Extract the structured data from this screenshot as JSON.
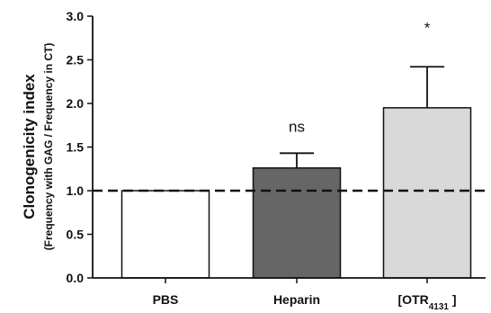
{
  "chart_data": {
    "type": "bar",
    "categories": [
      "PBS",
      "Heparin",
      "[OTR4131 ]"
    ],
    "category_labels": [
      {
        "text": "PBS",
        "subscript": ""
      },
      {
        "text": "Heparin",
        "subscript": ""
      },
      {
        "text": "[OTR",
        "subscript": "4131",
        "suffix": " ]"
      }
    ],
    "values": [
      1.0,
      1.26,
      1.95
    ],
    "error_upper": [
      0.0,
      0.17,
      0.47
    ],
    "annotations": [
      "",
      "ns",
      "*"
    ],
    "bar_colors": [
      "#ffffff",
      "#666666",
      "#d9d9d9"
    ],
    "bar_edge_color": "#111111",
    "ylabel": "Clonogenicity index",
    "ylabel_sub": "(Frequency with GAG / Frequency in CT)",
    "ylim": [
      0,
      3.0
    ],
    "yticks": [
      "0.0",
      "0.5",
      "1.0",
      "1.5",
      "2.0",
      "2.5",
      "3.0"
    ],
    "reference_line": {
      "value": 1.0,
      "style": "dashed"
    },
    "grid": false
  }
}
